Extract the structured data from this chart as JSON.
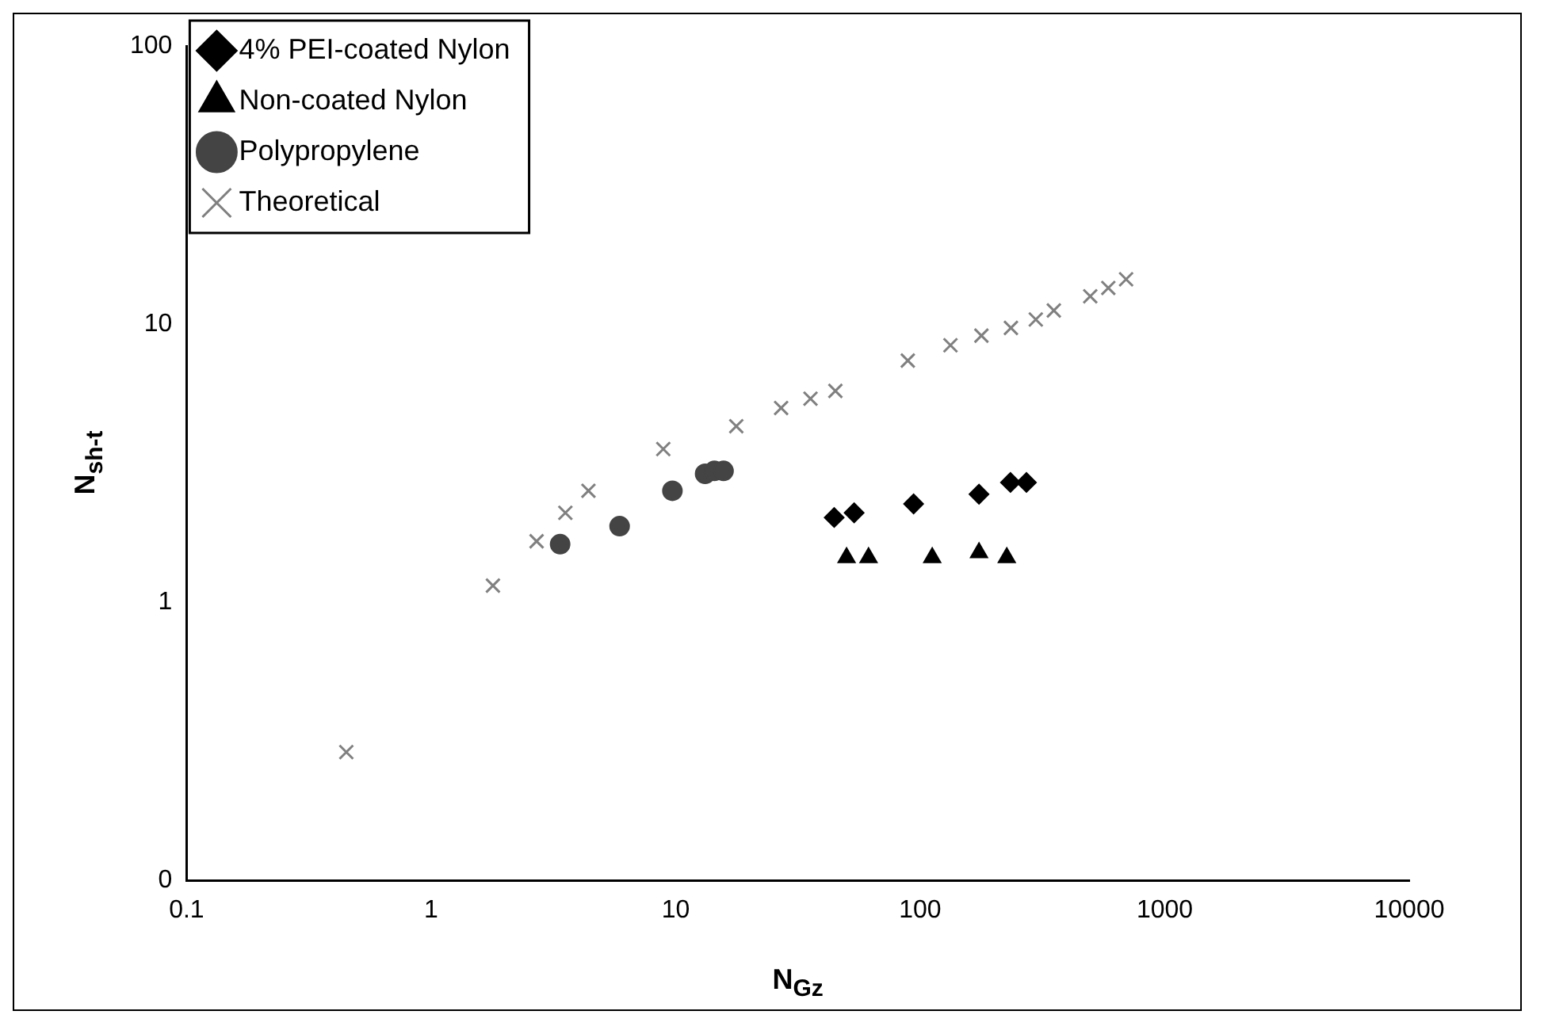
{
  "chart_data": {
    "type": "scatter",
    "xlabel": "N$_{Gz}$",
    "ylabel": "N$_{sh-t}$",
    "log": "xy",
    "xlim": [
      0.1,
      10000
    ],
    "ylim": [
      0.1,
      100
    ],
    "xticks": [
      0.1,
      1,
      10,
      100,
      1000,
      10000
    ],
    "yticks": [
      {
        "value": 0.1,
        "label": "0"
      },
      1,
      10,
      100
    ],
    "grid": false,
    "legend": "top left",
    "series": [
      {
        "name": "4% PEI-coated Nylon",
        "color": "#000000",
        "marker": "diamond",
        "x": [
          44.5,
          53.7,
          94,
          174,
          234,
          272
        ],
        "values": [
          2.02,
          2.1,
          2.26,
          2.45,
          2.7,
          2.7
        ]
      },
      {
        "name": "Non-coated Nylon",
        "color": "#000000",
        "marker": "triangle",
        "x": [
          50,
          61.5,
          112,
          174,
          226
        ],
        "values": [
          1.45,
          1.45,
          1.45,
          1.51,
          1.45
        ]
      },
      {
        "name": "Polypropylene",
        "color": "#444444",
        "marker": "circle",
        "x": [
          3.37,
          5.9,
          9.7,
          13.2,
          14.4,
          15.7
        ],
        "values": [
          1.62,
          1.88,
          2.52,
          2.9,
          2.97,
          2.97
        ]
      },
      {
        "name": "Theoretical",
        "color": "#808080",
        "marker": "cross",
        "x": [
          0.45,
          1.79,
          2.7,
          3.54,
          4.4,
          8.9,
          17.7,
          27,
          35.6,
          45,
          89,
          133,
          178,
          235,
          297,
          352,
          496,
          588,
          695
        ],
        "values": [
          0.29,
          1.15,
          1.66,
          2.1,
          2.52,
          3.56,
          4.3,
          5.0,
          5.4,
          5.76,
          7.4,
          8.4,
          9.1,
          9.7,
          10.4,
          11.2,
          12.6,
          13.5,
          14.5
        ]
      }
    ]
  }
}
